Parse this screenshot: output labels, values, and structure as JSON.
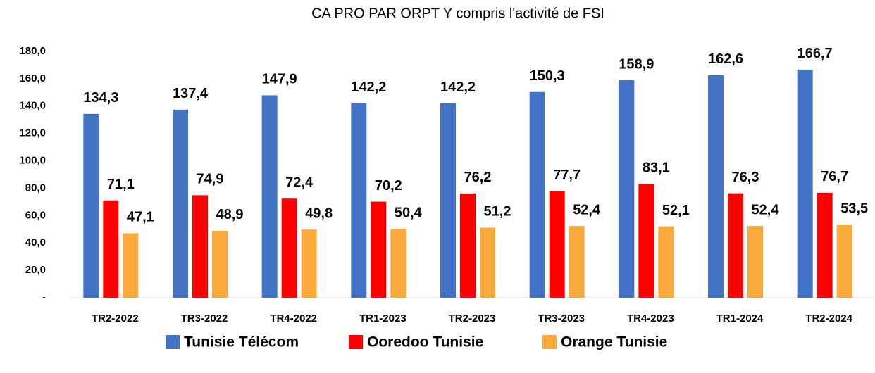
{
  "chart_data": {
    "type": "bar",
    "title": "CA PRO PAR ORPT Y compris l'activité de FSI",
    "categories": [
      "TR2-2022",
      "TR3-2022",
      "TR4-2022",
      "TR1-2023",
      "TR2-2023",
      "TR3-2023",
      "TR4-2023",
      "TR1-2024",
      "TR2-2024"
    ],
    "series": [
      {
        "name": "Tunisie Télécom",
        "color": "#4472c4",
        "values": [
          134.3,
          137.4,
          147.9,
          142.2,
          142.2,
          150.3,
          158.9,
          162.6,
          166.7
        ],
        "value_labels": [
          "134,3",
          "137,4",
          "147,9",
          "142,2",
          "142,2",
          "150,3",
          "158,9",
          "162,6",
          "166,7"
        ]
      },
      {
        "name": "Ooredoo Tunisie",
        "color": "#ff0000",
        "values": [
          71.1,
          74.9,
          72.4,
          70.2,
          76.2,
          77.7,
          83.1,
          76.3,
          76.7
        ],
        "value_labels": [
          "71,1",
          "74,9",
          "72,4",
          "70,2",
          "76,2",
          "77,7",
          "83,1",
          "76,3",
          "76,7"
        ]
      },
      {
        "name": "Orange Tunisie",
        "color": "#fbab3c",
        "values": [
          47.1,
          48.9,
          49.8,
          50.4,
          51.2,
          52.4,
          52.1,
          52.4,
          53.5
        ],
        "value_labels": [
          "47,1",
          "48,9",
          "49,8",
          "50,4",
          "51,2",
          "52,4",
          "52,1",
          "52,4",
          "53,5"
        ]
      }
    ],
    "ylim": [
      0,
      180
    ],
    "yticks": [
      {
        "value": 0,
        "label": "-"
      },
      {
        "value": 20,
        "label": "20,0"
      },
      {
        "value": 40,
        "label": "40,0"
      },
      {
        "value": 60,
        "label": "60,0"
      },
      {
        "value": 80,
        "label": "80,0"
      },
      {
        "value": 100,
        "label": "100,0"
      },
      {
        "value": 120,
        "label": "120,0"
      },
      {
        "value": 140,
        "label": "140,0"
      },
      {
        "value": 160,
        "label": "160,0"
      },
      {
        "value": 180,
        "label": "180,0"
      }
    ],
    "grid": false,
    "legend": "bottom"
  }
}
